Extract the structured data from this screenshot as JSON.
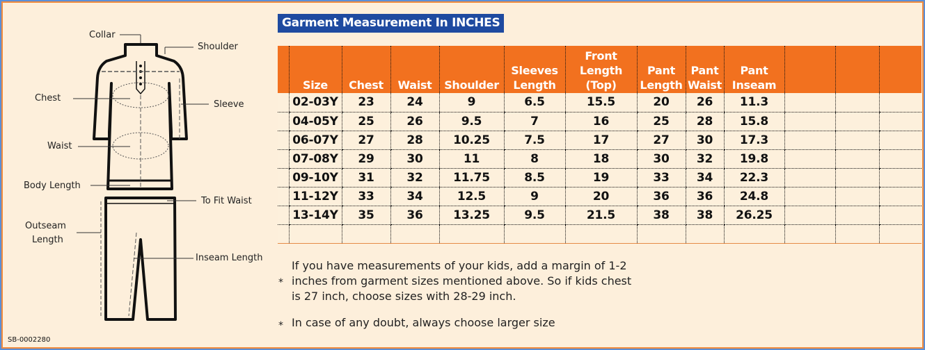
{
  "title": "Garment Measurement In INCHES",
  "diagram": {
    "labels": {
      "collar": "Collar",
      "shoulder": "Shoulder",
      "chest": "Chest",
      "sleeve": "Sleeve",
      "waist": "Waist",
      "body_length": "Body Length",
      "to_fit_waist": "To Fit Waist",
      "outseam_1": "Outseam",
      "outseam_2": "Length",
      "inseam": "Inseam Length"
    }
  },
  "code": "SB-0002280",
  "table": {
    "headers": [
      "",
      "Size",
      "Chest",
      "Waist",
      "Shoulder",
      "Sleeves Length",
      "Front Length (Top)",
      "Pant Length",
      "Pant Waist",
      "Pant Inseam",
      "",
      "",
      ""
    ],
    "rows": [
      [
        "02-03Y",
        "23",
        "24",
        "9",
        "6.5",
        "15.5",
        "20",
        "26",
        "11.3"
      ],
      [
        "04-05Y",
        "25",
        "26",
        "9.5",
        "7",
        "16",
        "25",
        "28",
        "15.8"
      ],
      [
        "06-07Y",
        "27",
        "28",
        "10.25",
        "7.5",
        "17",
        "27",
        "30",
        "17.3"
      ],
      [
        "07-08Y",
        "29",
        "30",
        "11",
        "8",
        "18",
        "30",
        "32",
        "19.8"
      ],
      [
        "09-10Y",
        "31",
        "32",
        "11.75",
        "8.5",
        "19",
        "33",
        "34",
        "22.3"
      ],
      [
        "11-12Y",
        "33",
        "34",
        "12.5",
        "9",
        "20",
        "36",
        "36",
        "24.8"
      ],
      [
        "13-14Y",
        "35",
        "36",
        "13.25",
        "9.5",
        "21.5",
        "38",
        "38",
        "26.25"
      ],
      [
        "",
        "",
        "",
        "",
        "",
        "",
        "",
        "",
        ""
      ]
    ]
  },
  "notes": [
    {
      "bullet": "*",
      "text": "If you have measurements of your kids, add a margin of 1-2 inches from garment sizes mentioned above. So if kids chest is 27 inch, choose sizes with 28-29 inch."
    },
    {
      "bullet": "*",
      "text": "In case of any doubt, always choose larger size"
    }
  ],
  "colors": {
    "header": "#f2711f",
    "title_bg": "#1e4aa0",
    "background": "#fdefdb"
  }
}
